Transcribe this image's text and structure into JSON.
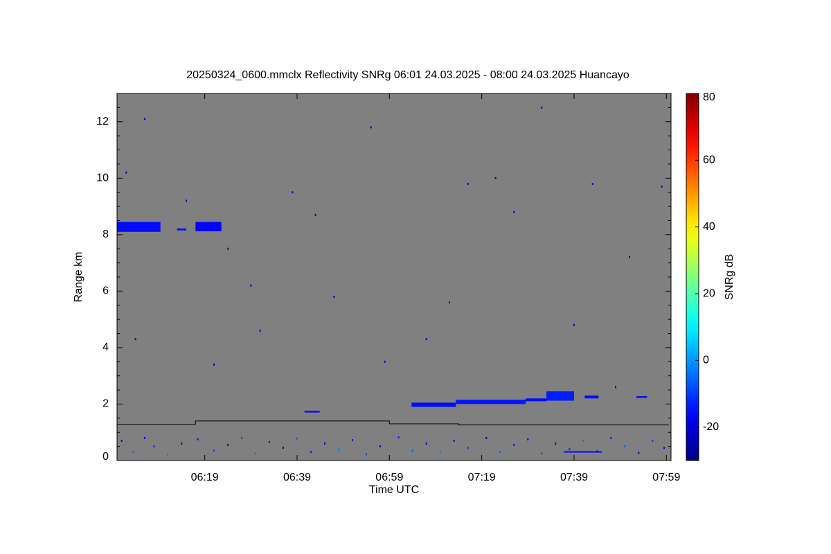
{
  "chart_data": {
    "type": "heatmap",
    "title": "20250324_0600.mmclx Reflectivity SNRg   06:01 24.03.2025 - 08:00 24.03.2025 Huancayo",
    "xlabel": "Time UTC",
    "ylabel": "Range km",
    "colorbar_label": "SNRg dB",
    "background": "#808080",
    "colormap": "jet",
    "xlim": [
      360,
      480
    ],
    "xticks": [
      {
        "value": 379,
        "label": "06:19"
      },
      {
        "value": 399,
        "label": "06:39"
      },
      {
        "value": 419,
        "label": "06:59"
      },
      {
        "value": 439,
        "label": "07:19"
      },
      {
        "value": 459,
        "label": "07:39"
      },
      {
        "value": 479,
        "label": "07:59"
      }
    ],
    "ylim": [
      0,
      13
    ],
    "yticks": [
      0,
      2,
      4,
      6,
      8,
      10,
      12
    ],
    "yminorticks": [
      0.5,
      1,
      1.5,
      2.5,
      3,
      3.5,
      4.5,
      5,
      5.5,
      6.5,
      7,
      7.5,
      8.5,
      9,
      9.5,
      10.5,
      11,
      11.5,
      12.5
    ],
    "clim": [
      -30,
      80
    ],
    "cticks": [
      -20,
      0,
      20,
      40,
      60,
      80
    ],
    "echoes": [
      {
        "x0": 360,
        "x1": 369.4,
        "y0": 8.1,
        "y1": 8.45,
        "value": -15
      },
      {
        "x0": 373,
        "x1": 375,
        "y0": 8.15,
        "y1": 8.22,
        "value": -15
      },
      {
        "x0": 377,
        "x1": 382.6,
        "y0": 8.12,
        "y1": 8.45,
        "value": -16
      },
      {
        "x0": 400.6,
        "x1": 403.9,
        "y0": 1.7,
        "y1": 1.76,
        "value": -15
      },
      {
        "x0": 423.8,
        "x1": 433.4,
        "y0": 1.9,
        "y1": 2.05,
        "value": -15
      },
      {
        "x0": 433.4,
        "x1": 448.5,
        "y0": 2.0,
        "y1": 2.15,
        "value": -14
      },
      {
        "x0": 448.5,
        "x1": 453,
        "y0": 2.1,
        "y1": 2.2,
        "value": -15
      },
      {
        "x0": 453,
        "x1": 459,
        "y0": 2.12,
        "y1": 2.45,
        "value": -13
      },
      {
        "x0": 461.3,
        "x1": 464.3,
        "y0": 2.2,
        "y1": 2.3,
        "value": -15
      },
      {
        "x0": 472.5,
        "x1": 474.8,
        "y0": 2.22,
        "y1": 2.28,
        "value": -15
      },
      {
        "x0": 456.8,
        "x1": 465,
        "y0": 0.28,
        "y1": 0.33,
        "value": -15
      }
    ],
    "noise": {
      "x": [
        361,
        363.5,
        366,
        368,
        371,
        374,
        377.5,
        381,
        384,
        387,
        390,
        393,
        396,
        399,
        402,
        405,
        408,
        411,
        414,
        417,
        421,
        424,
        427,
        430,
        433,
        436,
        440,
        443,
        446,
        449,
        452,
        455,
        458,
        461,
        464,
        467,
        470,
        473,
        476,
        478.5,
        362,
        366,
        375,
        384,
        391,
        398,
        407,
        415,
        427,
        436,
        442,
        452,
        463,
        471,
        478,
        364,
        381,
        389,
        403,
        418,
        432,
        446,
        459,
        468
      ],
      "y": [
        0.7,
        0.3,
        0.8,
        0.5,
        0.2,
        0.6,
        0.75,
        0.35,
        0.55,
        0.8,
        0.25,
        0.65,
        0.45,
        0.78,
        0.3,
        0.6,
        0.4,
        0.72,
        0.22,
        0.5,
        0.82,
        0.35,
        0.6,
        0.28,
        0.7,
        0.45,
        0.8,
        0.3,
        0.55,
        0.75,
        0.25,
        0.6,
        0.4,
        0.7,
        0.32,
        0.8,
        0.5,
        0.27,
        0.7,
        0.45,
        10.2,
        12.1,
        9.2,
        7.5,
        4.6,
        9.5,
        5.8,
        11.8,
        4.3,
        9.8,
        10.0,
        12.5,
        9.8,
        7.2,
        9.7,
        4.3,
        3.4,
        6.2,
        8.7,
        3.5,
        5.6,
        8.8,
        4.8,
        2.6
      ],
      "values": [
        -18,
        -5,
        -20,
        -12,
        -3,
        -19,
        -15,
        -8,
        -21,
        -10,
        -4,
        -17,
        -22,
        -6,
        -14,
        -20,
        -2,
        -16,
        -9,
        -19,
        -13,
        -7,
        -21,
        -3,
        -18,
        -11,
        -20,
        -5,
        -15,
        -22,
        -8,
        -17,
        -12,
        -4,
        -19,
        -14,
        -6,
        -21,
        -10,
        -16,
        -20,
        -20,
        -20,
        -20,
        -20,
        -20,
        -20,
        -20,
        -20,
        -20,
        -20,
        -20,
        -20,
        -20,
        -20,
        -20,
        -20,
        -20,
        -20,
        -20,
        -20,
        -20,
        -20,
        -20
      ]
    },
    "boundary": {
      "x": [
        360,
        377,
        377,
        419,
        419,
        434,
        434,
        479.5
      ],
      "y": [
        1.28,
        1.28,
        1.4,
        1.4,
        1.3,
        1.3,
        1.26,
        1.26
      ],
      "color": "#000000"
    }
  }
}
